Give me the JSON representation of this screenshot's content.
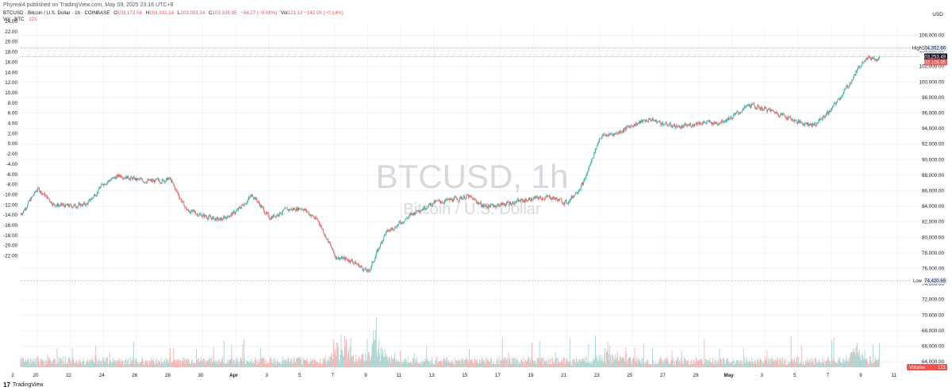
{
  "header": {
    "caption": "Phyreal4 published on TradingView.com, May 09, 2025 23:16 UTC+8",
    "symbol_line": "BTCUSD · Bitcoin / U.S. Dollar · 1h · COINBASE",
    "ohlc": [
      {
        "label": "O",
        "value": "103,172.04"
      },
      {
        "label": "H",
        "value": "103,331.14"
      },
      {
        "label": "L",
        "value": "103,003.14"
      },
      {
        "label": "C",
        "value": "103,108.95"
      },
      {
        "label": "",
        "value": "−84.27 (−0.08%)"
      }
    ],
    "volume_label": "Vol · BTC",
    "volume_value": "121",
    "volume_change_label": "Vol",
    "volume_change": "121.12  −142.05 (−0.14%)",
    "currency": "USD"
  },
  "watermark": {
    "main": "BTCUSD, 1h",
    "sub": "Bitcoin / U.S. Dollar"
  },
  "brand": {
    "logo": "17",
    "name": "TradingView"
  },
  "colors": {
    "up": "#26a69a",
    "down": "#ef5350",
    "up_volume": "#a5d6d2",
    "down_volume": "#f7b3b1",
    "grid": "#f0f3fa",
    "high_line": "#9598a1",
    "current_price": "#ef5350",
    "tag_bg": "#dde4f5"
  },
  "chart_data": {
    "type": "candlestick",
    "symbol": "BTCUSD",
    "timeframe": "1h",
    "exchange": "COINBASE",
    "right_axis": {
      "ticks": [
        "106,000.00",
        "104,000.00",
        "102,000.00",
        "100,000.00",
        "98,000.00",
        "96,000.00",
        "94,000.00",
        "92,000.00",
        "90,000.00",
        "88,000.00",
        "86,000.00",
        "84,000.00",
        "82,000.00",
        "80,000.00",
        "78,000.00",
        "76,000.00",
        "74,000.00",
        "72,000.00",
        "70,000.00",
        "68,000.00",
        "66,000.00",
        "64,000.00"
      ],
      "range": [
        64000,
        106000
      ]
    },
    "left_axis": {
      "ticks": [
        "24.00",
        "22.00",
        "20.00",
        "18.00",
        "16.00",
        "14.00",
        "12.00",
        "10.00",
        "8.00",
        "6.00",
        "4.00",
        "2.00",
        "0.00",
        "-2.00",
        "-4.00",
        "-6.00",
        "-8.00",
        "-10.00",
        "-12.00",
        "-14.00",
        "-16.00",
        "-18.00",
        "-20.00",
        "-22.00"
      ]
    },
    "x_ticks": [
      "2",
      "20",
      "22",
      "24",
      "26",
      "28",
      "30",
      "Apr",
      "3",
      "5",
      "7",
      "9",
      "11",
      "13",
      "15",
      "17",
      "19",
      "21",
      "23",
      "25",
      "27",
      "29",
      "May",
      "3",
      "5",
      "7",
      "9",
      "11"
    ],
    "x_range": [
      "2025-03-19",
      "2025-05-11"
    ],
    "markers": [
      {
        "label": "High",
        "value": "104,352.60",
        "price": 104352.6
      },
      {
        "label": "",
        "value": "103,253.49",
        "price": 103253.49
      },
      {
        "label": "",
        "value": "103,108.95",
        "price": 103108.95
      },
      {
        "label": "Low",
        "value": "74,420.69",
        "price": 74420.69
      }
    ],
    "volume_tag": {
      "label": "Volume",
      "value": "121"
    },
    "price_path": [
      {
        "date": "2025-03-19",
        "price": 83000
      },
      {
        "date": "2025-03-20",
        "price": 86300
      },
      {
        "date": "2025-03-21",
        "price": 84200
      },
      {
        "date": "2025-03-22",
        "price": 84000
      },
      {
        "date": "2025-03-23",
        "price": 84300
      },
      {
        "date": "2025-03-24",
        "price": 87000
      },
      {
        "date": "2025-03-25",
        "price": 88000
      },
      {
        "date": "2025-03-26",
        "price": 87400
      },
      {
        "date": "2025-03-27",
        "price": 87200
      },
      {
        "date": "2025-03-28",
        "price": 87500
      },
      {
        "date": "2025-03-29",
        "price": 83500
      },
      {
        "date": "2025-03-30",
        "price": 82800
      },
      {
        "date": "2025-03-31",
        "price": 82200
      },
      {
        "date": "2025-04-01",
        "price": 83300
      },
      {
        "date": "2025-04-02",
        "price": 85500
      },
      {
        "date": "2025-04-03",
        "price": 82500
      },
      {
        "date": "2025-04-04",
        "price": 83500
      },
      {
        "date": "2025-04-05",
        "price": 83800
      },
      {
        "date": "2025-04-06",
        "price": 82000
      },
      {
        "date": "2025-04-07",
        "price": 77500
      },
      {
        "date": "2025-04-08",
        "price": 77000
      },
      {
        "date": "2025-04-09",
        "price": 75500
      },
      {
        "date": "2025-04-10",
        "price": 80500
      },
      {
        "date": "2025-04-11",
        "price": 82000
      },
      {
        "date": "2025-04-12",
        "price": 83500
      },
      {
        "date": "2025-04-13",
        "price": 84500
      },
      {
        "date": "2025-04-14",
        "price": 84800
      },
      {
        "date": "2025-04-15",
        "price": 85300
      },
      {
        "date": "2025-04-16",
        "price": 84000
      },
      {
        "date": "2025-04-17",
        "price": 84200
      },
      {
        "date": "2025-04-18",
        "price": 84600
      },
      {
        "date": "2025-04-19",
        "price": 85000
      },
      {
        "date": "2025-04-20",
        "price": 85200
      },
      {
        "date": "2025-04-21",
        "price": 84400
      },
      {
        "date": "2025-04-22",
        "price": 87000
      },
      {
        "date": "2025-04-23",
        "price": 93000
      },
      {
        "date": "2025-04-24",
        "price": 93400
      },
      {
        "date": "2025-04-25",
        "price": 94500
      },
      {
        "date": "2025-04-26",
        "price": 95200
      },
      {
        "date": "2025-04-27",
        "price": 94500
      },
      {
        "date": "2025-04-28",
        "price": 94200
      },
      {
        "date": "2025-04-29",
        "price": 94800
      },
      {
        "date": "2025-04-30",
        "price": 94700
      },
      {
        "date": "2025-05-01",
        "price": 95500
      },
      {
        "date": "2025-05-02",
        "price": 97000
      },
      {
        "date": "2025-05-03",
        "price": 96500
      },
      {
        "date": "2025-05-04",
        "price": 95800
      },
      {
        "date": "2025-05-05",
        "price": 94800
      },
      {
        "date": "2025-05-06",
        "price": 94500
      },
      {
        "date": "2025-05-07",
        "price": 96500
      },
      {
        "date": "2025-05-08",
        "price": 99500
      },
      {
        "date": "2025-05-09",
        "price": 103100
      }
    ],
    "volume_spikes": [
      {
        "date": "2025-04-07",
        "volume": "max"
      },
      {
        "date": "2025-04-09",
        "volume": "max"
      },
      {
        "date": "2025-04-23",
        "volume": "high"
      },
      {
        "date": "2025-05-08",
        "volume": "high"
      }
    ]
  }
}
